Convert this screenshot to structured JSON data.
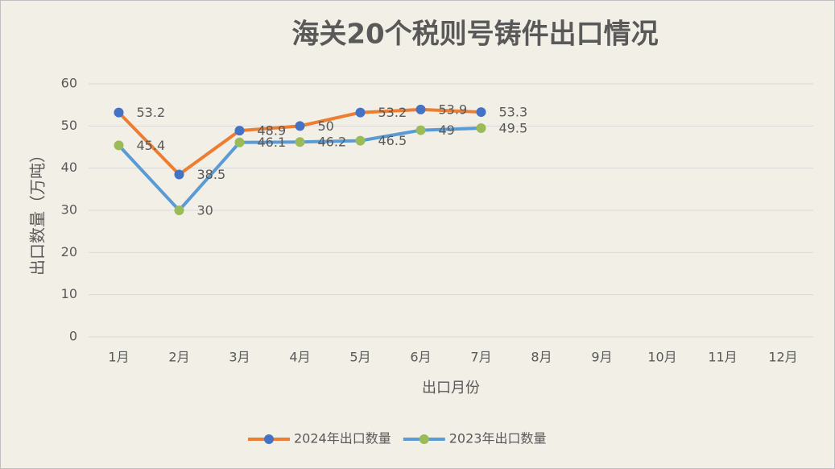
{
  "chart_data": {
    "type": "line",
    "title": "海关20个税则号铸件出口情况",
    "x_label": "出口月份",
    "y_label": "出口数量（万吨）",
    "categories": [
      "1月",
      "2月",
      "3月",
      "4月",
      "5月",
      "6月",
      "7月",
      "8月",
      "9月",
      "10月",
      "11月",
      "12月"
    ],
    "series": [
      {
        "name": "2024年出口数量",
        "color": "#ed7d31",
        "marker_color": "#4472c4",
        "values": [
          53.2,
          38.5,
          48.9,
          50,
          53.2,
          53.9,
          53.3,
          null,
          null,
          null,
          null,
          null
        ]
      },
      {
        "name": "2023年出口数量",
        "color": "#5b9bd5",
        "marker_color": "#9bbb59",
        "values": [
          45.4,
          30,
          46.1,
          46.2,
          46.5,
          49,
          49.5,
          null,
          null,
          null,
          null,
          null
        ]
      }
    ],
    "ylim": [
      0,
      60
    ],
    "yticks": [
      0,
      10,
      20,
      30,
      40,
      50,
      60
    ],
    "grid": true,
    "legend": "bottom"
  }
}
